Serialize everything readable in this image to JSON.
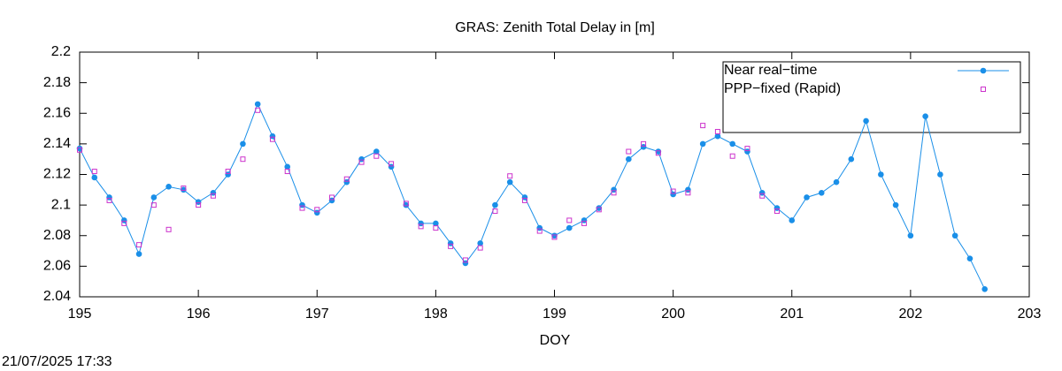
{
  "chart_data": {
    "type": "line",
    "title": "GRAS: Zenith Total Delay in [m]",
    "x_label": "DOY",
    "timestamp": "21/07/2025 17:33",
    "xlim": [
      195,
      203
    ],
    "xticks": [
      195,
      196,
      197,
      198,
      199,
      200,
      201,
      202,
      203
    ],
    "ylim": [
      2.04,
      2.2
    ],
    "yticks": [
      2.04,
      2.06,
      2.08,
      2.1,
      2.12,
      2.14,
      2.16,
      2.18,
      2.2
    ],
    "legend": "top right",
    "series": [
      {
        "name": "Near real−time",
        "color": "#1a8fe8",
        "marker": "circle",
        "x": [
          195,
          195.125,
          195.25,
          195.375,
          195.5,
          195.625,
          195.75,
          195.875,
          196,
          196.125,
          196.25,
          196.375,
          196.5,
          196.625,
          196.75,
          196.875,
          197,
          197.125,
          197.25,
          197.375,
          197.5,
          197.625,
          197.75,
          197.875,
          198,
          198.125,
          198.25,
          198.375,
          198.5,
          198.625,
          198.75,
          198.875,
          199,
          199.125,
          199.25,
          199.375,
          199.5,
          199.625,
          199.75,
          199.875,
          200,
          200.125,
          200.25,
          200.375,
          200.5,
          200.625,
          200.75,
          200.875,
          201,
          201.125,
          201.25,
          201.375,
          201.5,
          201.625,
          201.75,
          201.875,
          202,
          202.125,
          202.25,
          202.375,
          202.5,
          202.625
        ],
        "values": [
          2.137,
          2.118,
          2.105,
          2.09,
          2.068,
          2.105,
          2.112,
          2.11,
          2.102,
          2.108,
          2.12,
          2.14,
          2.166,
          2.145,
          2.125,
          2.1,
          2.095,
          2.103,
          2.115,
          2.13,
          2.135,
          2.125,
          2.1,
          2.088,
          2.088,
          2.075,
          2.062,
          2.075,
          2.1,
          2.115,
          2.105,
          2.085,
          2.08,
          2.085,
          2.09,
          2.098,
          2.11,
          2.13,
          2.138,
          2.135,
          2.107,
          2.11,
          2.14,
          2.145,
          2.14,
          2.135,
          2.108,
          2.098,
          2.09,
          2.105,
          2.108,
          2.115,
          2.13,
          2.155,
          2.12,
          2.1,
          2.08,
          2.158,
          2.12,
          2.08,
          2.065,
          2.045
        ]
      },
      {
        "name": "PPP−fixed (Rapid)",
        "color": "#cc33cc",
        "marker": "square",
        "x": [
          195,
          195.125,
          195.25,
          195.375,
          195.5,
          195.625,
          195.75,
          195.875,
          196,
          196.125,
          196.25,
          196.375,
          196.5,
          196.625,
          196.75,
          196.875,
          197,
          197.125,
          197.25,
          197.375,
          197.5,
          197.625,
          197.75,
          197.875,
          198,
          198.125,
          198.25,
          198.375,
          198.5,
          198.625,
          198.75,
          198.875,
          199,
          199.125,
          199.25,
          199.375,
          199.5,
          199.625,
          199.75,
          199.875,
          200,
          200.125,
          200.25,
          200.375,
          200.5,
          200.625,
          200.75,
          200.875
        ],
        "values": [
          2.136,
          2.122,
          2.103,
          2.088,
          2.074,
          2.1,
          2.084,
          2.111,
          2.1,
          2.106,
          2.122,
          2.13,
          2.162,
          2.143,
          2.122,
          2.098,
          2.097,
          2.105,
          2.117,
          2.128,
          2.132,
          2.127,
          2.101,
          2.086,
          2.085,
          2.073,
          2.064,
          2.072,
          2.096,
          2.119,
          2.103,
          2.083,
          2.079,
          2.09,
          2.088,
          2.097,
          2.108,
          2.135,
          2.14,
          2.134,
          2.109,
          2.108,
          2.152,
          2.148,
          2.132,
          2.137,
          2.106,
          2.096
        ]
      }
    ]
  }
}
